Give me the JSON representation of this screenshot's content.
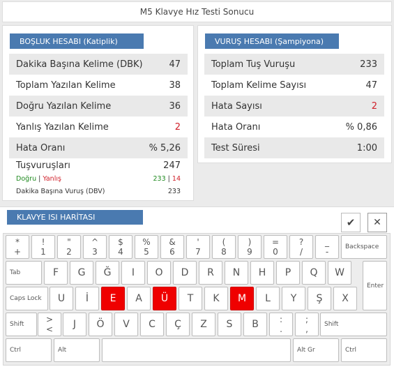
{
  "title": "M5 Klavye Hız Testi Sonucu",
  "left_panel": {
    "header": "BOŞLUK HESABI (Katiplik)",
    "rows": [
      {
        "label": "Dakika Başına Kelime (DBK)",
        "value": "47"
      },
      {
        "label": "Toplam Yazılan Kelime",
        "value": "38"
      },
      {
        "label": "Doğru Yazılan Kelime",
        "value": "36"
      },
      {
        "label": "Yanlış Yazılan Kelime",
        "value": "2"
      },
      {
        "label": "Hata Oranı",
        "value": "% 5,26"
      }
    ],
    "keystrokes_label": "Tuşvuruşları",
    "keystrokes_value": "247",
    "correct_label": "Doğru",
    "separator": "|",
    "wrong_label": "Yanlış",
    "correct_value": "233",
    "wrong_value": "14",
    "dbv_label": "Dakika Başına Vuruş (DBV)",
    "dbv_value": "233"
  },
  "right_panel": {
    "header": "VURUŞ HESABI (Şampiyona)",
    "rows": [
      {
        "label": "Toplam Tuş Vuruşu",
        "value": "233"
      },
      {
        "label": "Toplam Kelime Sayısı",
        "value": "47"
      },
      {
        "label": "Hata Sayısı",
        "value": "2"
      },
      {
        "label": "Hata Oranı",
        "value": "% 0,86"
      },
      {
        "label": "Test Süresi",
        "value": "1:00"
      }
    ]
  },
  "keyboard": {
    "header": "KLAVYE ISI HARİTASI",
    "check_icon": "✔",
    "close_icon": "✕",
    "row1": [
      {
        "t": "*",
        "b": "+"
      },
      {
        "t": "!",
        "b": "1"
      },
      {
        "t": "\"",
        "b": "2"
      },
      {
        "t": "^",
        "b": "3"
      },
      {
        "t": "$",
        "b": "4"
      },
      {
        "t": "%",
        "b": "5"
      },
      {
        "t": "&",
        "b": "6"
      },
      {
        "t": "'",
        "b": "7"
      },
      {
        "t": "(",
        "b": "8"
      },
      {
        "t": ")",
        "b": "9"
      },
      {
        "t": "=",
        "b": "0"
      },
      {
        "t": "?",
        "b": "/"
      },
      {
        "t": "_",
        "b": "-"
      }
    ],
    "backspace": "Backspace",
    "tab": "Tab",
    "row2": [
      "F",
      "G",
      "Ğ",
      "I",
      "O",
      "D",
      "R",
      "N",
      "H",
      "P",
      "Q",
      "W"
    ],
    "enter": "Enter",
    "caps": "Caps Lock",
    "row3": [
      "U",
      "İ",
      "E",
      "A",
      "Ü",
      "T",
      "K",
      "M",
      "L",
      "Y",
      "Ş",
      "X"
    ],
    "row3_hot": [
      "E",
      "Ü",
      "M"
    ],
    "shift_left": "Shift",
    "angle": {
      "t": ">",
      "b": "<"
    },
    "row4": [
      "J",
      "Ö",
      "V",
      "C",
      "Ç",
      "Z",
      "S",
      "B"
    ],
    "colon": {
      "t": ":",
      "b": "."
    },
    "semicolon": {
      "t": ";",
      "b": ","
    },
    "shift_right": "Shift",
    "ctrl_left": "Ctrl",
    "alt": "Alt",
    "altgr": "Alt Gr",
    "ctrl_right": "Ctrl",
    "colors": {
      "hot": "#ef0000",
      "header": "#4a7ab0",
      "error_text": "#d0202a",
      "correct_text": "#1f8a1f"
    }
  }
}
